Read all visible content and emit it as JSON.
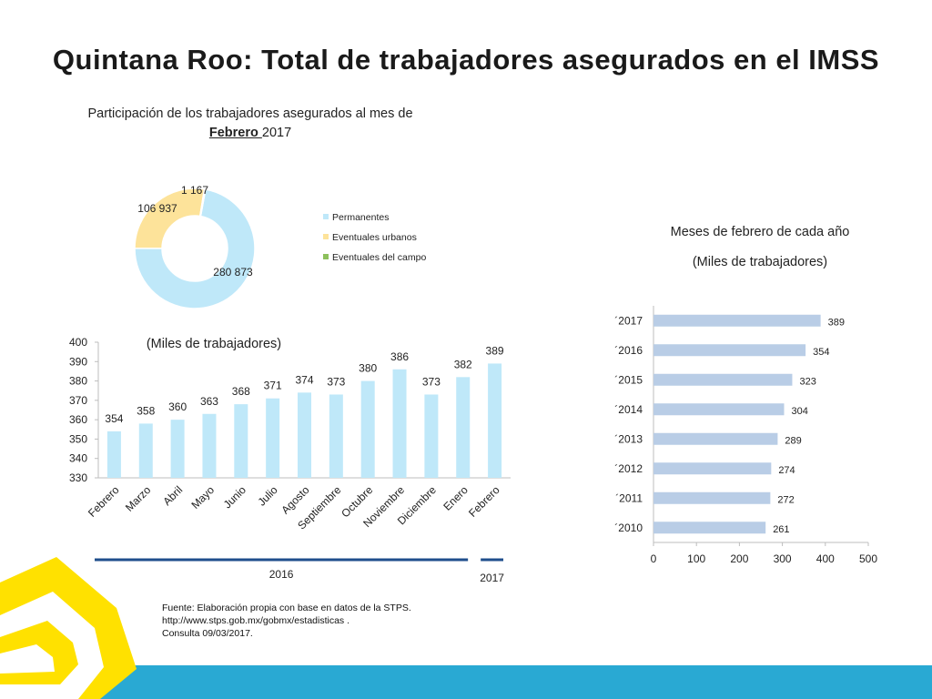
{
  "title": "Quintana Roo: Total de trabajadores asegurados en el IMSS",
  "colors": {
    "permanentes": "#bfe8f9",
    "urbanos": "#fde39a",
    "campo": "#8dc05c",
    "bar_blue": "#bfe8f9",
    "hbar": "#b9cde6",
    "year_line": "#1f4e8c",
    "logo_yellow": "#ffe100",
    "footer_band": "#29a9d3"
  },
  "source": {
    "line1": "Fuente: Elaboración propia con base en  datos de la STPS.",
    "line2": " http://www.stps.gob.mx/gobmx/estadisticas .",
    "line3": "Consulta 09/03/2017."
  },
  "chart_data": [
    {
      "type": "pie",
      "title_line1": "Participación  de los trabajadores asegurados al mes de",
      "title_month": "Febrero ",
      "title_year": "2017",
      "legend_position": "right",
      "labels": [
        "Permanentes",
        "Eventuales urbanos",
        "Eventuales del campo"
      ],
      "values": [
        280873,
        106937,
        1167
      ],
      "value_labels": [
        "280 873",
        "106 937",
        "1 167"
      ]
    },
    {
      "type": "bar",
      "title": "(Miles de trabajadores)",
      "categories": [
        "Febrero",
        "Marzo",
        "Abril",
        "Mayo",
        "Junio",
        "Julio",
        "Agosto",
        "Septiembre",
        "Octubre",
        "Noviembre",
        "Diciembre",
        "Enero",
        "Febrero"
      ],
      "values": [
        354,
        358,
        360,
        363,
        368,
        371,
        374,
        373,
        380,
        386,
        373,
        382,
        389
      ],
      "ylim": [
        330,
        400
      ],
      "yticks": [
        330,
        340,
        350,
        360,
        370,
        380,
        390,
        400
      ],
      "year_groups": [
        {
          "label": "2016",
          "from": 0,
          "to": 11
        },
        {
          "label": "2017",
          "from": 12,
          "to": 12
        }
      ],
      "grid": false
    },
    {
      "type": "bar",
      "orientation": "horizontal",
      "title_line1": "Meses de febrero de cada año",
      "title_line2": "(Miles de trabajadores)",
      "categories": [
        "´2010",
        "´2011",
        "´2012",
        "´2013",
        "´2014",
        "´2015",
        "´2016",
        "´2017"
      ],
      "values": [
        261,
        272,
        274,
        289,
        304,
        323,
        354,
        389
      ],
      "xlim": [
        0,
        500
      ],
      "xticks": [
        0,
        100,
        200,
        300,
        400,
        500
      ],
      "grid": false
    }
  ]
}
